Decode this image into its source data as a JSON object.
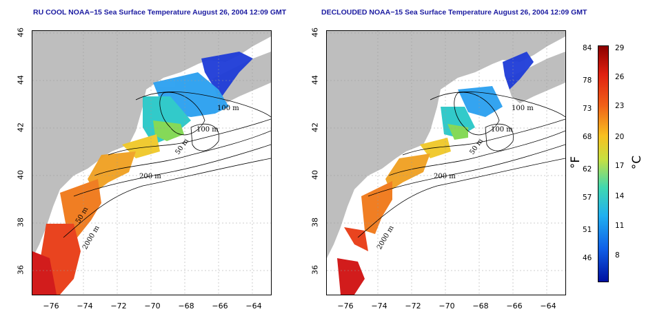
{
  "panels": [
    {
      "title": "RU COOL NOAA−15 Sea Surface Temperature August 26, 2004 12:09 GMT"
    },
    {
      "title": "DECLOUDED NOAA−15 Sea Surface Temperature August 26, 2004 12:09 GMT"
    }
  ],
  "axes": {
    "x_ticks": [
      "−76",
      "−74",
      "−72",
      "−70",
      "−68",
      "−66",
      "−64"
    ],
    "y_ticks": [
      "36",
      "38",
      "40",
      "42",
      "44",
      "46"
    ]
  },
  "contour_labels": {
    "left": [
      "100 m",
      "100 m",
      "50 m",
      "200 m",
      "50 m",
      "2000 m"
    ],
    "right": [
      "100 m",
      "100 m",
      "50 m",
      "200 m",
      "2000 m"
    ]
  },
  "colorbar": {
    "fahrenheit_ticks": [
      "84",
      "78",
      "73",
      "68",
      "62",
      "57",
      "51",
      "46"
    ],
    "celsius_ticks": [
      "29",
      "26",
      "23",
      "20",
      "17",
      "14",
      "11",
      "8"
    ],
    "fahrenheit_unit": "°F",
    "celsius_unit": "°C"
  },
  "colors": {
    "land": "#bebebe",
    "title": "#1a1aa0"
  }
}
